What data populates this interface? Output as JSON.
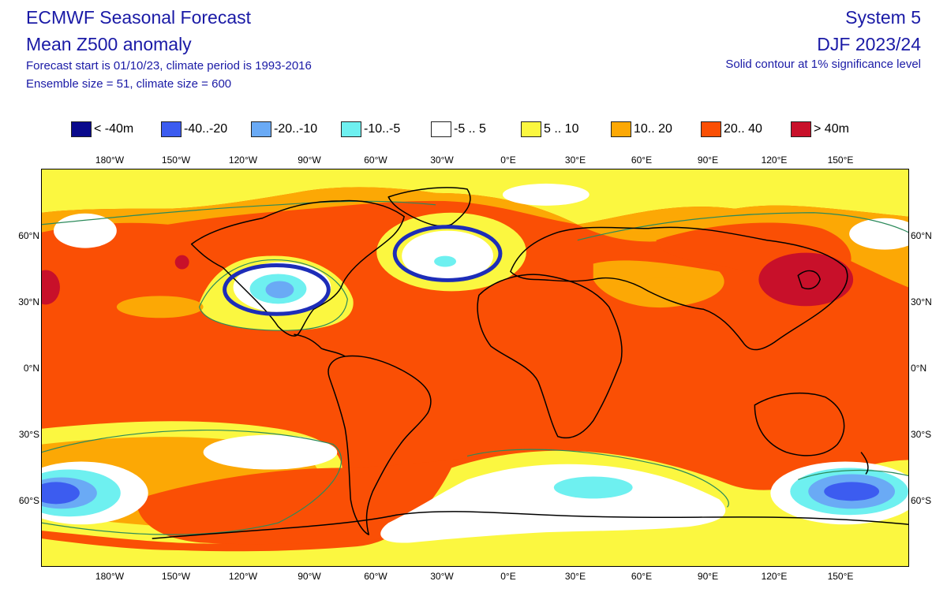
{
  "header": {
    "title_line_1": "ECMWF Seasonal Forecast",
    "title_line_2": "Mean Z500 anomaly",
    "info_line_1": "Forecast start is 01/10/23, climate period is 1993-2016",
    "info_line_2": "Ensemble size = 51, climate size = 600",
    "system": "System 5",
    "period": "DJF 2023/24",
    "significance_note": "Solid contour at 1% significance level"
  },
  "legend": [
    {
      "label": "< -40m",
      "color": "#0a0a8c"
    },
    {
      "label": "-40..-20",
      "color": "#3c5cf0"
    },
    {
      "label": "-20..-10",
      "color": "#6aaaf5"
    },
    {
      "label": "-10..-5",
      "color": "#6ef0f0"
    },
    {
      "label": "-5 .. 5",
      "color": "#ffffff"
    },
    {
      "label": "5 .. 10",
      "color": "#fbf740"
    },
    {
      "label": "10.. 20",
      "color": "#fca805"
    },
    {
      "label": "20.. 40",
      "color": "#fa4f05"
    },
    {
      "label": "> 40m",
      "color": "#c8102a"
    }
  ],
  "axes": {
    "longitude_labels": [
      "180°W",
      "150°W",
      "120°W",
      "90°W",
      "60°W",
      "30°W",
      "0°E",
      "30°E",
      "60°E",
      "90°E",
      "120°E",
      "150°E"
    ],
    "latitude_labels": [
      "60°N",
      "30°N",
      "0°N",
      "30°S",
      "60°S"
    ]
  },
  "map": {
    "projection": "cylindrical",
    "annotation_circles_color": "#1d2db8",
    "significance_contour_color": "#2b8a5a"
  }
}
